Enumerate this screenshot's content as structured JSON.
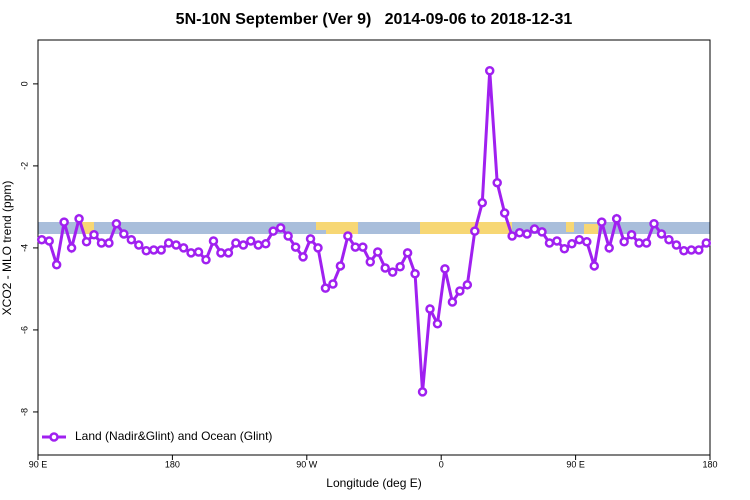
{
  "chart_data": {
    "type": "line",
    "title": "5N-10N September (Ver 9)   2014-09-06 to 2018-12-31",
    "x_label": "Longitude (deg E)",
    "y_label": "XCO2 - MLO trend (ppm)",
    "xlim": [
      90,
      540
    ],
    "xticks": [
      {
        "value": 90,
        "label": "90 E"
      },
      180,
      {
        "value": 270,
        "label": "90 W"
      },
      {
        "value": 360,
        "label": "0"
      },
      {
        "value": 450,
        "label": "90 E"
      },
      {
        "value": 540,
        "label": "180"
      }
    ],
    "ylim": [
      -9.05,
      1.07
    ],
    "yticks": [
      -8,
      -6,
      -4,
      -2,
      0
    ],
    "legend": "bottom-left",
    "x": [
      92.5,
      97.5,
      102.5,
      107.5,
      112.5,
      117.5,
      122.5,
      127.5,
      132.5,
      137.5,
      142.5,
      147.5,
      152.5,
      157.5,
      162.5,
      167.5,
      172.5,
      177.5,
      182.5,
      187.5,
      192.5,
      197.5,
      202.5,
      207.5,
      212.5,
      217.5,
      222.5,
      227.5,
      232.5,
      237.5,
      242.5,
      247.5,
      252.5,
      257.5,
      262.5,
      267.5,
      272.5,
      277.5,
      282.5,
      287.5,
      292.5,
      297.5,
      302.5,
      307.5,
      312.5,
      317.5,
      322.5,
      327.5,
      332.5,
      337.5,
      342.5,
      347.5,
      352.5,
      357.5,
      362.5,
      367.5,
      372.5,
      377.5,
      382.5,
      387.5,
      392.5,
      397.5,
      402.5,
      407.5,
      412.5,
      417.5,
      422.5,
      427.5,
      432.5,
      437.5,
      442.5,
      447.5,
      452.5,
      457.5,
      462.5,
      467.5,
      472.5,
      477.5,
      482.5,
      487.5,
      492.5,
      497.5,
      502.5,
      507.5,
      512.5,
      517.5,
      522.5,
      527.5,
      532.5,
      537.5
    ],
    "series": [
      {
        "name": "Land (Nadir&Glint) and Ocean (Glint)",
        "color": "#a020f0",
        "values": [
          -3.8,
          -3.83,
          -4.41,
          -3.37,
          -4.0,
          -3.29,
          -3.85,
          -3.68,
          -3.88,
          -3.88,
          -3.41,
          -3.66,
          -3.8,
          -3.93,
          -4.07,
          -4.05,
          -4.05,
          -3.88,
          -3.93,
          -4.0,
          -4.12,
          -4.1,
          -4.29,
          -3.83,
          -4.12,
          -4.12,
          -3.88,
          -3.93,
          -3.83,
          -3.93,
          -3.9,
          -3.59,
          -3.51,
          -3.71,
          -3.98,
          -4.22,
          -3.78,
          -4.0,
          -4.98,
          -4.88,
          -4.44,
          -3.71,
          -3.98,
          -3.98,
          -4.34,
          -4.1,
          -4.49,
          -4.59,
          -4.46,
          -4.12,
          -4.63,
          -7.51,
          -5.49,
          -5.85,
          -4.51,
          -5.32,
          -5.05,
          -4.9,
          -3.59,
          -2.9,
          0.32,
          -2.41,
          -3.15,
          -3.71,
          -3.63,
          -3.66,
          -3.54,
          -3.61,
          -3.88,
          -3.83,
          -4.02,
          -3.9,
          -3.8,
          -3.85,
          -4.44,
          -3.37,
          -4.0,
          -3.29,
          -3.85,
          -3.68,
          -3.88,
          -3.88,
          -3.41,
          -3.66,
          -3.8,
          -3.93,
          -4.07,
          -4.05,
          -4.05,
          -3.88
        ]
      }
    ]
  }
}
